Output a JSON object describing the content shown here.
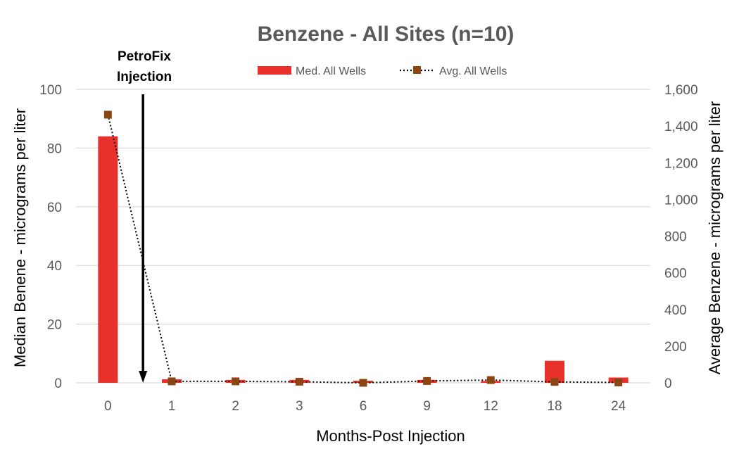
{
  "chart_data": {
    "type": "bar",
    "title": "Benzene - All Sites (n=10)",
    "xlabel": "Months-Post Injection",
    "ylabel": "Median Benene - micrograms per liter",
    "y2label": "Average Benzene - micrograms per liter",
    "categories": [
      "0",
      "1",
      "2",
      "3",
      "6",
      "9",
      "12",
      "18",
      "24"
    ],
    "ylim": [
      0,
      100
    ],
    "y2lim": [
      0,
      1600
    ],
    "yticks": [
      "0",
      "20",
      "40",
      "60",
      "80",
      "100"
    ],
    "y2ticks": [
      "0",
      "200",
      "400",
      "600",
      "800",
      "1,000",
      "1,200",
      "1,400",
      "1,600"
    ],
    "grid": true,
    "legend_position": "top",
    "series": [
      {
        "name": "Med. All Wells",
        "type": "bar",
        "axis": "left",
        "color": "#e8312a",
        "values": [
          84,
          1.2,
          1.0,
          1.0,
          0.7,
          1.0,
          0.6,
          7.5,
          1.8
        ]
      },
      {
        "name": "Avg. All Wells",
        "type": "line",
        "axis": "right",
        "color": "#8b4513",
        "line_style": "dotted",
        "marker": "square",
        "values": [
          1462,
          8,
          8,
          6,
          0,
          10,
          15,
          5,
          2
        ]
      }
    ],
    "annotations": [
      {
        "text_lines": [
          "PetroFix",
          "Injection"
        ],
        "arrow": "down",
        "x_between": [
          "0",
          "1"
        ]
      }
    ]
  }
}
